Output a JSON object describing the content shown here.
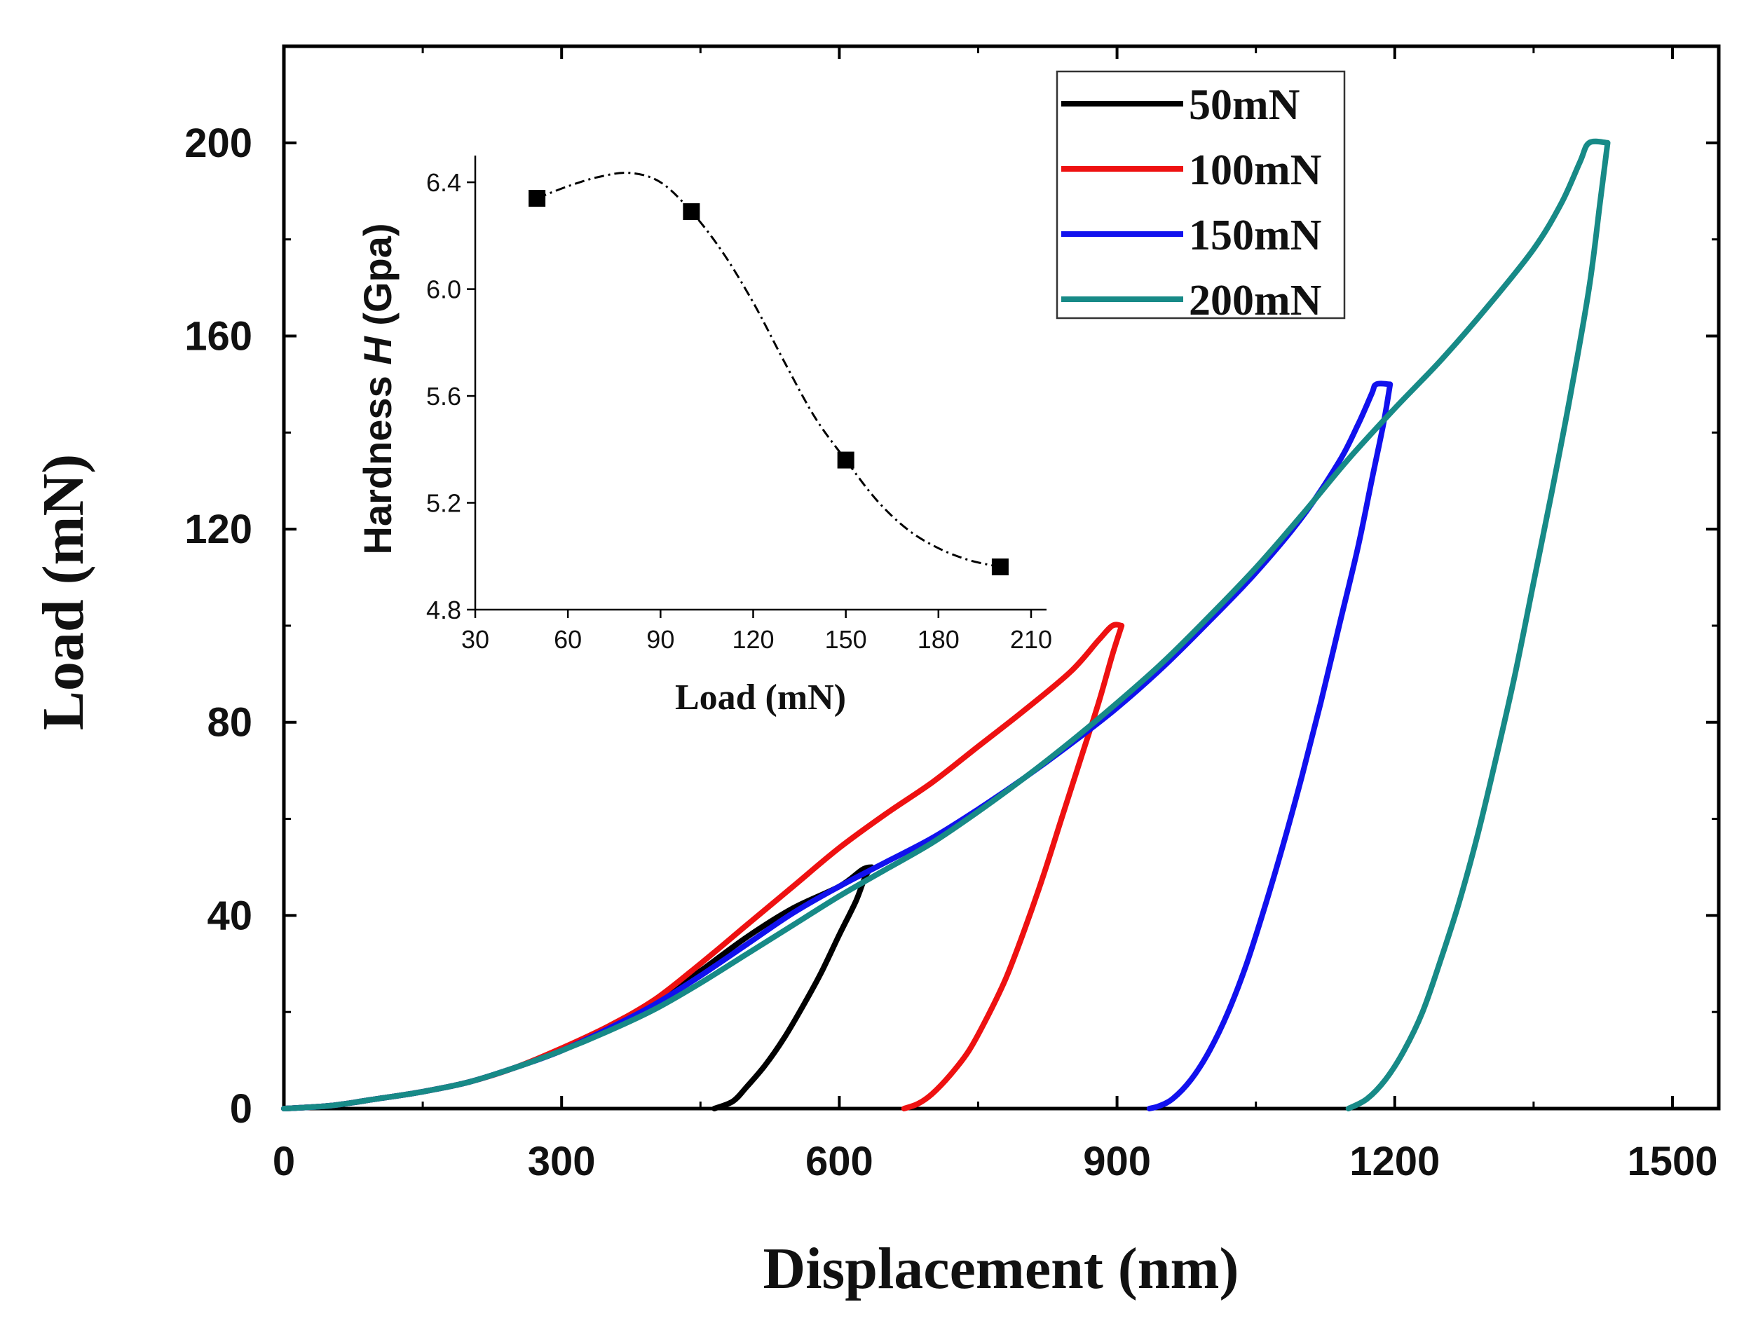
{
  "chart_data": {
    "type": "line",
    "main": {
      "xlabel": "Displacement (nm)",
      "ylabel": "Load (mN)",
      "xlim": [
        0,
        1550
      ],
      "ylim": [
        0,
        220
      ],
      "xticks": [
        0,
        300,
        600,
        900,
        1200,
        1500
      ],
      "yticks": [
        0,
        40,
        80,
        120,
        160,
        200
      ],
      "legend_position": "top-right",
      "series": [
        {
          "name": "50mN",
          "color": "#000000",
          "loading": [
            [
              0,
              0
            ],
            [
              50,
              0.6
            ],
            [
              100,
              2
            ],
            [
              150,
              3.5
            ],
            [
              200,
              5.5
            ],
            [
              250,
              8.5
            ],
            [
              300,
              12
            ],
            [
              350,
              16.5
            ],
            [
              400,
              22
            ],
            [
              450,
              28.5
            ],
            [
              500,
              35.5
            ],
            [
              550,
              41.5
            ],
            [
              600,
              46
            ],
            [
              625,
              49.5
            ],
            [
              635,
              50
            ]
          ],
          "unloading": [
            [
              635,
              50
            ],
            [
              628,
              48
            ],
            [
              618,
              43
            ],
            [
              600,
              36
            ],
            [
              580,
              28
            ],
            [
              560,
              21
            ],
            [
              540,
              14.5
            ],
            [
              520,
              9
            ],
            [
              500,
              4.5
            ],
            [
              485,
              1.5
            ],
            [
              465,
              0
            ]
          ]
        },
        {
          "name": "100mN",
          "color": "#ee1111",
          "loading": [
            [
              0,
              0
            ],
            [
              50,
              0.6
            ],
            [
              100,
              2
            ],
            [
              150,
              3.5
            ],
            [
              200,
              5.5
            ],
            [
              250,
              8.5
            ],
            [
              300,
              12.5
            ],
            [
              350,
              17
            ],
            [
              400,
              22.5
            ],
            [
              450,
              30
            ],
            [
              500,
              38
            ],
            [
              550,
              46
            ],
            [
              600,
              54
            ],
            [
              650,
              61
            ],
            [
              700,
              67.5
            ],
            [
              750,
              75
            ],
            [
              800,
              82.5
            ],
            [
              850,
              90.5
            ],
            [
              880,
              97
            ],
            [
              895,
              100
            ],
            [
              905,
              100
            ]
          ],
          "unloading": [
            [
              905,
              100
            ],
            [
              895,
              94
            ],
            [
              880,
              84
            ],
            [
              860,
              72
            ],
            [
              840,
              60
            ],
            [
              820,
              48
            ],
            [
              800,
              37
            ],
            [
              780,
              27
            ],
            [
              760,
              19
            ],
            [
              740,
              12
            ],
            [
              720,
              7
            ],
            [
              700,
              3
            ],
            [
              685,
              1
            ],
            [
              670,
              0
            ]
          ]
        },
        {
          "name": "150mN",
          "color": "#1111ee",
          "loading": [
            [
              0,
              0
            ],
            [
              50,
              0.6
            ],
            [
              100,
              2
            ],
            [
              150,
              3.5
            ],
            [
              200,
              5.5
            ],
            [
              250,
              8.5
            ],
            [
              300,
              12
            ],
            [
              350,
              16.5
            ],
            [
              400,
              21.5
            ],
            [
              450,
              27.5
            ],
            [
              500,
              34
            ],
            [
              550,
              40.5
            ],
            [
              600,
              46
            ],
            [
              650,
              51
            ],
            [
              700,
              56
            ],
            [
              750,
              62
            ],
            [
              800,
              68.5
            ],
            [
              850,
              75.5
            ],
            [
              900,
              83
            ],
            [
              950,
              91.5
            ],
            [
              1000,
              101
            ],
            [
              1050,
              111
            ],
            [
              1100,
              122.5
            ],
            [
              1140,
              134
            ],
            [
              1160,
              141.5
            ],
            [
              1175,
              148
            ],
            [
              1180,
              150
            ],
            [
              1195,
              150
            ]
          ],
          "unloading": [
            [
              1195,
              150
            ],
            [
              1188,
              142
            ],
            [
              1175,
              130
            ],
            [
              1160,
              116
            ],
            [
              1140,
              100
            ],
            [
              1120,
              84
            ],
            [
              1100,
              69
            ],
            [
              1080,
              55
            ],
            [
              1060,
              42
            ],
            [
              1040,
              30
            ],
            [
              1020,
              20
            ],
            [
              1000,
              12
            ],
            [
              980,
              6
            ],
            [
              960,
              2
            ],
            [
              945,
              0.5
            ],
            [
              935,
              0
            ]
          ]
        },
        {
          "name": "200mN",
          "color": "#178a87",
          "loading": [
            [
              0,
              0
            ],
            [
              50,
              0.6
            ],
            [
              100,
              2
            ],
            [
              150,
              3.5
            ],
            [
              200,
              5.5
            ],
            [
              250,
              8.5
            ],
            [
              300,
              12
            ],
            [
              350,
              16
            ],
            [
              400,
              20.5
            ],
            [
              450,
              26
            ],
            [
              500,
              32
            ],
            [
              550,
              38
            ],
            [
              600,
              44
            ],
            [
              650,
              49.5
            ],
            [
              700,
              55
            ],
            [
              750,
              61.5
            ],
            [
              800,
              68.5
            ],
            [
              850,
              76
            ],
            [
              900,
              84
            ],
            [
              950,
              92.5
            ],
            [
              1000,
              102
            ],
            [
              1050,
              112
            ],
            [
              1100,
              123
            ],
            [
              1150,
              134.5
            ],
            [
              1200,
              145
            ],
            [
              1250,
              155
            ],
            [
              1300,
              166
            ],
            [
              1350,
              178
            ],
            [
              1380,
              187.5
            ],
            [
              1400,
              196
            ],
            [
              1410,
              200
            ],
            [
              1430,
              200
            ]
          ],
          "unloading": [
            [
              1430,
              200
            ],
            [
              1422,
              188
            ],
            [
              1410,
              170
            ],
            [
              1390,
              148
            ],
            [
              1370,
              128
            ],
            [
              1350,
              109
            ],
            [
              1330,
              90
            ],
            [
              1310,
              73
            ],
            [
              1290,
              57
            ],
            [
              1270,
              43
            ],
            [
              1250,
              31
            ],
            [
              1230,
              20
            ],
            [
              1210,
              12
            ],
            [
              1190,
              6
            ],
            [
              1170,
              2
            ],
            [
              1150,
              0
            ]
          ]
        }
      ]
    },
    "inset": {
      "type": "scatter",
      "xlabel": "Load (mN)",
      "ylabel_prefix": "Hardness ",
      "ylabel_symbol": "H",
      "ylabel_suffix": " (Gpa)",
      "xlim": [
        30,
        215
      ],
      "ylim": [
        4.8,
        6.5
      ],
      "xticks": [
        30,
        60,
        90,
        120,
        150,
        180,
        210
      ],
      "yticks": [
        4.8,
        5.2,
        5.6,
        6.0,
        6.4
      ],
      "points": [
        [
          50,
          6.34
        ],
        [
          100,
          6.29
        ],
        [
          150,
          5.36
        ],
        [
          200,
          4.96
        ]
      ],
      "fit_curve": [
        [
          50,
          6.34
        ],
        [
          60,
          6.385
        ],
        [
          70,
          6.42
        ],
        [
          80,
          6.435
        ],
        [
          90,
          6.4
        ],
        [
          100,
          6.29
        ],
        [
          110,
          6.14
        ],
        [
          120,
          5.95
        ],
        [
          130,
          5.73
        ],
        [
          140,
          5.52
        ],
        [
          150,
          5.36
        ],
        [
          160,
          5.21
        ],
        [
          170,
          5.1
        ],
        [
          180,
          5.03
        ],
        [
          190,
          4.985
        ],
        [
          200,
          4.96
        ]
      ],
      "marker_color": "#000000"
    }
  }
}
